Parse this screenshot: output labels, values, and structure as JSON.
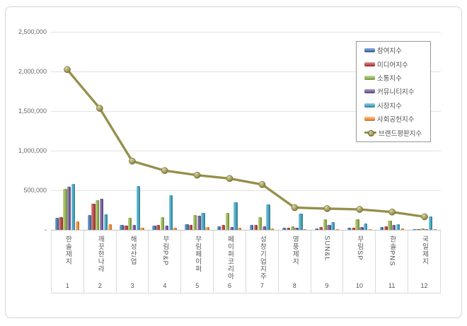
{
  "page": {
    "background": "#ffffff",
    "frame_border_color": "#d6d6d6"
  },
  "y_axis": {
    "ticks": [
      {
        "label": "2,500,000",
        "value": 2500000
      },
      {
        "label": "2,000,000",
        "value": 2000000
      },
      {
        "label": "1,500,000",
        "value": 1500000
      },
      {
        "label": "1,000,000",
        "value": 1000000
      },
      {
        "label": "500,000",
        "value": 500000
      },
      {
        "label": "-",
        "value": 0
      }
    ]
  },
  "x_axis": {
    "ranks": [
      "1",
      "2",
      "3",
      "4",
      "5",
      "6",
      "7",
      "8",
      "9",
      "10",
      "11",
      "12"
    ]
  },
  "chart_data": {
    "type": "bar+line",
    "title": "",
    "xlabel": "",
    "ylabel": "",
    "ylim": [
      0,
      2500000
    ],
    "grid": true,
    "legend_position": "top-right",
    "categories": [
      "한솔제지",
      "깨끗한나라",
      "해성산업",
      "무림P&P",
      "무림페이퍼",
      "페이퍼코리아",
      "성창기업지주",
      "영풍제지",
      "SUN&L",
      "무림SP",
      "한솔PNS",
      "국일제지"
    ],
    "series": [
      {
        "name": "참여지수",
        "color": "#4F81BD",
        "values": [
          150000,
          185000,
          60000,
          58000,
          73000,
          45000,
          62000,
          30000,
          15000,
          24000,
          38000,
          8000
        ]
      },
      {
        "name": "미디어지수",
        "color": "#C0504D",
        "values": [
          162000,
          330000,
          53000,
          65000,
          67000,
          60000,
          62000,
          25000,
          38000,
          30000,
          45000,
          10000
        ]
      },
      {
        "name": "소통지수",
        "color": "#9BBB59",
        "values": [
          515000,
          375000,
          150000,
          163000,
          185000,
          215000,
          165000,
          48000,
          135000,
          137000,
          113000,
          15000
        ]
      },
      {
        "name": "커뮤니티지수",
        "color": "#8064A2",
        "values": [
          548000,
          395000,
          65000,
          53000,
          178000,
          40000,
          45000,
          25000,
          60000,
          38000,
          60000,
          10000
        ]
      },
      {
        "name": "시장지수",
        "color": "#4BACC6",
        "values": [
          585000,
          200000,
          558000,
          440000,
          215000,
          350000,
          320000,
          205000,
          98000,
          83000,
          74000,
          168000
        ]
      },
      {
        "name": "사회공헌지수",
        "color": "#F79646",
        "values": [
          108000,
          75000,
          30000,
          30000,
          38000,
          30000,
          20000,
          10000,
          8000,
          8000,
          22000,
          5000
        ]
      }
    ],
    "line_series": {
      "name": "브랜드평판지수",
      "color": "#98924f",
      "values": [
        2023000,
        1535000,
        868000,
        748000,
        690000,
        648000,
        572000,
        280000,
        268000,
        258000,
        225000,
        165000
      ]
    }
  }
}
